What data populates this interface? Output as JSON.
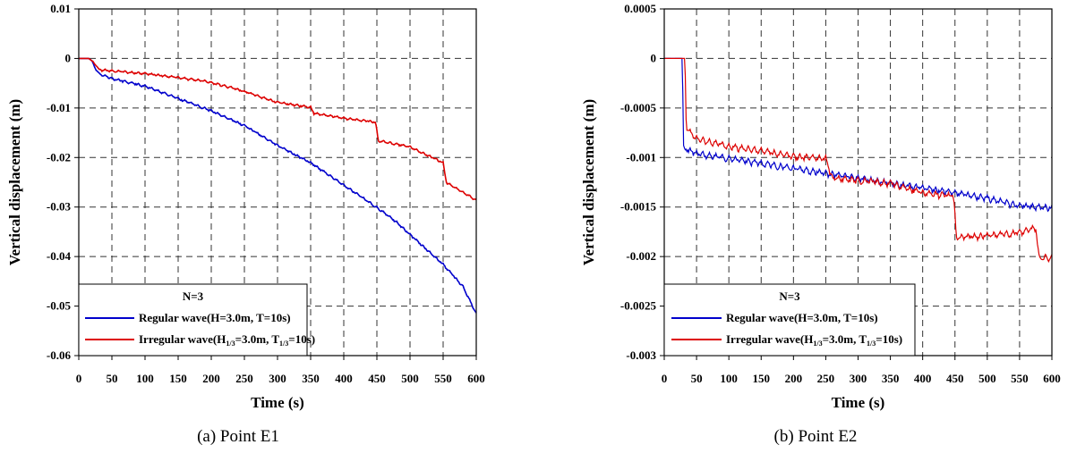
{
  "chart_data": [
    {
      "type": "line",
      "caption": "(a)  Point  E1",
      "xlabel": "Time (s)",
      "ylabel": "Vertical displacement (m)",
      "xlim": [
        0,
        600
      ],
      "ylim": [
        -0.06,
        0.01
      ],
      "xticks": [
        0,
        50,
        100,
        150,
        200,
        250,
        300,
        350,
        400,
        450,
        500,
        550,
        600
      ],
      "yticks": [
        0.01,
        0,
        -0.01,
        -0.02,
        -0.03,
        -0.04,
        -0.05,
        -0.06
      ],
      "ytick_labels": [
        "0.01",
        "0",
        "-0.01",
        "-0.02",
        "-0.03",
        "-0.04",
        "-0.05",
        "-0.06"
      ],
      "grid": true,
      "legend_title": "N=3",
      "legend_position": "bottom-left",
      "series": [
        {
          "name": "Regular wave(H=3.0m, T=10s)",
          "color": "#0000cc",
          "x": [
            0,
            15,
            20,
            25,
            30,
            50,
            100,
            150,
            200,
            250,
            300,
            350,
            400,
            450,
            480,
            500,
            550,
            580,
            600
          ],
          "y": [
            0,
            0,
            -0.0005,
            -0.002,
            -0.003,
            -0.004,
            -0.0055,
            -0.008,
            -0.0105,
            -0.0135,
            -0.0175,
            -0.021,
            -0.0255,
            -0.03,
            -0.033,
            -0.0355,
            -0.0415,
            -0.046,
            -0.0515
          ]
        },
        {
          "name": "Irregular wave(H1/3=3.0m, T1/3=10s)",
          "color": "#dd0000",
          "x": [
            0,
            15,
            20,
            25,
            30,
            100,
            150,
            190,
            230,
            270,
            300,
            350,
            355,
            400,
            448,
            452,
            500,
            550,
            555,
            580,
            600
          ],
          "y": [
            0,
            0,
            -0.0005,
            -0.001,
            -0.0022,
            -0.003,
            -0.0038,
            -0.0045,
            -0.0058,
            -0.0075,
            -0.0088,
            -0.0098,
            -0.011,
            -0.012,
            -0.0128,
            -0.0165,
            -0.0178,
            -0.021,
            -0.025,
            -0.027,
            -0.0285
          ]
        }
      ]
    },
    {
      "type": "line",
      "caption": "(b)  Point  E2",
      "xlabel": "Time (s)",
      "ylabel": "Vertical displacement (m)",
      "xlim": [
        0,
        600
      ],
      "ylim": [
        -0.003,
        0.0005
      ],
      "xticks": [
        0,
        50,
        100,
        150,
        200,
        250,
        300,
        350,
        400,
        450,
        500,
        550,
        600
      ],
      "yticks": [
        0.0005,
        0,
        -0.0005,
        -0.001,
        -0.0015,
        -0.002,
        -0.0025,
        -0.003
      ],
      "ytick_labels": [
        "0.0005",
        "0",
        "-0.0005",
        "-0.001",
        "-0.0015",
        "-0.002",
        "-0.0025",
        "-0.003"
      ],
      "grid": true,
      "legend_title": "N=3",
      "legend_position": "bottom-left",
      "series": [
        {
          "name": "Regular wave(H=3.0m, T=10s)",
          "color": "#0000cc",
          "x": [
            0,
            25,
            28,
            30,
            50,
            100,
            150,
            200,
            250,
            300,
            350,
            400,
            450,
            500,
            550,
            600
          ],
          "y": [
            0,
            0,
            0,
            -0.0009,
            -0.00095,
            -0.001,
            -0.00105,
            -0.0011,
            -0.00115,
            -0.0012,
            -0.00125,
            -0.0013,
            -0.00135,
            -0.0014,
            -0.00148,
            -0.0015
          ]
        },
        {
          "name": "Irregular wave(H1/3=3.0m, T1/3=10s)",
          "color": "#dd0000",
          "x": [
            0,
            28,
            32,
            34,
            50,
            100,
            150,
            200,
            250,
            260,
            300,
            350,
            400,
            448,
            452,
            500,
            550,
            575,
            580,
            600
          ],
          "y": [
            0,
            0,
            0,
            -0.0007,
            -0.0008,
            -0.00088,
            -0.00092,
            -0.00098,
            -0.001,
            -0.0012,
            -0.00122,
            -0.00125,
            -0.00135,
            -0.00138,
            -0.0018,
            -0.00178,
            -0.00175,
            -0.0017,
            -0.002,
            -0.002
          ]
        }
      ]
    }
  ],
  "legend_labels": {
    "regular": "Regular wave(H=3.0m, T=10s)",
    "irregular_pre": "Irregular wave(H",
    "irregular_sub": "1/3",
    "irregular_mid": "=3.0m, T",
    "irregular_post": "=10s)"
  }
}
